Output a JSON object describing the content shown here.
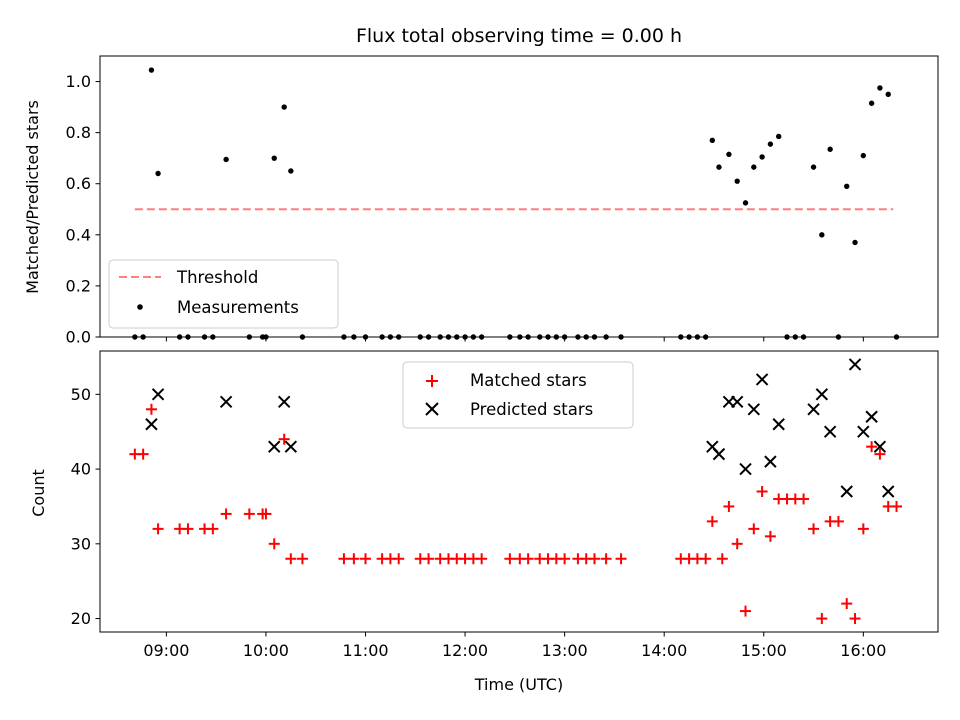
{
  "chart_data": [
    {
      "type": "scatter",
      "title": "Flux total observing time = 0.00 h",
      "xlabel": "",
      "ylabel": "Matched/Predicted stars",
      "ylim": [
        0,
        1.1
      ],
      "yticks": [
        "0.0",
        "0.2",
        "0.4",
        "0.6",
        "0.8",
        "1.0"
      ],
      "ytick_values": [
        0,
        0.2,
        0.4,
        0.6,
        0.8,
        1.0
      ],
      "xlim": [
        "08:20",
        "16:45"
      ],
      "legend": {
        "placement": "lower-left",
        "entries": [
          "Threshold",
          "Measurements"
        ]
      },
      "threshold": {
        "name": "Threshold",
        "y": 0.5,
        "x_start": "08:41",
        "x_end": "16:18",
        "color": "#ff7f7f",
        "style": "dashed"
      },
      "series": [
        {
          "name": "Measurements",
          "color": "#000000",
          "marker": "dot",
          "points": [
            [
              "08:41",
              0.0
            ],
            [
              "08:46",
              0.0
            ],
            [
              "08:51",
              1.045
            ],
            [
              "08:55",
              0.64
            ],
            [
              "09:08",
              0.0
            ],
            [
              "09:13",
              0.0
            ],
            [
              "09:23",
              0.0
            ],
            [
              "09:28",
              0.0
            ],
            [
              "09:36",
              0.695
            ],
            [
              "09:50",
              0.0
            ],
            [
              "09:58",
              0.0
            ],
            [
              "10:00",
              0.0
            ],
            [
              "10:05",
              0.7
            ],
            [
              "10:11",
              0.9
            ],
            [
              "10:15",
              0.65
            ],
            [
              "10:22",
              0.0
            ],
            [
              "10:47",
              0.0
            ],
            [
              "10:53",
              0.0
            ],
            [
              "11:00",
              0.0
            ],
            [
              "11:10",
              0.0
            ],
            [
              "11:15",
              0.0
            ],
            [
              "11:20",
              0.0
            ],
            [
              "11:33",
              0.0
            ],
            [
              "11:38",
              0.0
            ],
            [
              "11:45",
              0.0
            ],
            [
              "11:50",
              0.0
            ],
            [
              "11:55",
              0.0
            ],
            [
              "12:00",
              0.0
            ],
            [
              "12:05",
              0.0
            ],
            [
              "12:10",
              0.0
            ],
            [
              "12:27",
              0.0
            ],
            [
              "12:33",
              0.0
            ],
            [
              "12:38",
              0.0
            ],
            [
              "12:45",
              0.0
            ],
            [
              "12:50",
              0.0
            ],
            [
              "12:55",
              0.0
            ],
            [
              "13:00",
              0.0
            ],
            [
              "13:08",
              0.0
            ],
            [
              "13:13",
              0.0
            ],
            [
              "13:18",
              0.0
            ],
            [
              "13:25",
              0.0
            ],
            [
              "13:34",
              0.0
            ],
            [
              "14:10",
              0.0
            ],
            [
              "14:15",
              0.0
            ],
            [
              "14:20",
              0.0
            ],
            [
              "14:25",
              0.0
            ],
            [
              "14:29",
              0.77
            ],
            [
              "14:33",
              0.665
            ],
            [
              "14:39",
              0.715
            ],
            [
              "14:44",
              0.61
            ],
            [
              "14:49",
              0.525
            ],
            [
              "14:54",
              0.665
            ],
            [
              "14:59",
              0.705
            ],
            [
              "15:04",
              0.755
            ],
            [
              "15:09",
              0.785
            ],
            [
              "15:14",
              0.0
            ],
            [
              "15:19",
              0.0
            ],
            [
              "15:24",
              0.0
            ],
            [
              "15:30",
              0.665
            ],
            [
              "15:35",
              0.4
            ],
            [
              "15:40",
              0.735
            ],
            [
              "15:45",
              0.0
            ],
            [
              "15:50",
              0.59
            ],
            [
              "15:55",
              0.37
            ],
            [
              "16:00",
              0.71
            ],
            [
              "16:05",
              0.915
            ],
            [
              "16:10",
              0.975
            ],
            [
              "16:15",
              0.95
            ],
            [
              "16:20",
              0.0
            ]
          ]
        }
      ]
    },
    {
      "type": "scatter",
      "title": "",
      "xlabel": "Time (UTC)",
      "ylabel": "Count",
      "ylim": [
        18.2,
        55.8
      ],
      "yticks": [
        "20",
        "30",
        "40",
        "50"
      ],
      "ytick_values": [
        20,
        30,
        40,
        50
      ],
      "xlim": [
        "08:20",
        "16:45"
      ],
      "xticks": [
        "09:00",
        "10:00",
        "11:00",
        "12:00",
        "13:00",
        "14:00",
        "15:00",
        "16:00"
      ],
      "legend": {
        "placement": "upper-center",
        "entries": [
          "Matched stars",
          "Predicted stars"
        ]
      },
      "series": [
        {
          "name": "Matched stars",
          "color": "#ff0000",
          "marker": "plus",
          "points": [
            [
              "08:41",
              42
            ],
            [
              "08:46",
              42
            ],
            [
              "08:51",
              48
            ],
            [
              "08:55",
              32
            ],
            [
              "09:08",
              32
            ],
            [
              "09:13",
              32
            ],
            [
              "09:23",
              32
            ],
            [
              "09:28",
              32
            ],
            [
              "09:36",
              34
            ],
            [
              "09:50",
              34
            ],
            [
              "09:58",
              34
            ],
            [
              "10:00",
              34
            ],
            [
              "10:05",
              30
            ],
            [
              "10:11",
              44
            ],
            [
              "10:15",
              28
            ],
            [
              "10:22",
              28
            ],
            [
              "10:47",
              28
            ],
            [
              "10:53",
              28
            ],
            [
              "11:00",
              28
            ],
            [
              "11:10",
              28
            ],
            [
              "11:15",
              28
            ],
            [
              "11:20",
              28
            ],
            [
              "11:33",
              28
            ],
            [
              "11:38",
              28
            ],
            [
              "11:45",
              28
            ],
            [
              "11:50",
              28
            ],
            [
              "11:55",
              28
            ],
            [
              "12:00",
              28
            ],
            [
              "12:05",
              28
            ],
            [
              "12:10",
              28
            ],
            [
              "12:27",
              28
            ],
            [
              "12:33",
              28
            ],
            [
              "12:38",
              28
            ],
            [
              "12:45",
              28
            ],
            [
              "12:50",
              28
            ],
            [
              "12:55",
              28
            ],
            [
              "13:00",
              28
            ],
            [
              "13:08",
              28
            ],
            [
              "13:13",
              28
            ],
            [
              "13:18",
              28
            ],
            [
              "13:25",
              28
            ],
            [
              "13:34",
              28
            ],
            [
              "14:10",
              28
            ],
            [
              "14:15",
              28
            ],
            [
              "14:20",
              28
            ],
            [
              "14:25",
              28
            ],
            [
              "14:29",
              33
            ],
            [
              "14:35",
              28
            ],
            [
              "14:39",
              35
            ],
            [
              "14:44",
              30
            ],
            [
              "14:49",
              21
            ],
            [
              "14:54",
              32
            ],
            [
              "14:59",
              37
            ],
            [
              "15:04",
              31
            ],
            [
              "15:09",
              36
            ],
            [
              "15:14",
              36
            ],
            [
              "15:19",
              36
            ],
            [
              "15:24",
              36
            ],
            [
              "15:30",
              32
            ],
            [
              "15:35",
              20
            ],
            [
              "15:40",
              33
            ],
            [
              "15:45",
              33
            ],
            [
              "15:50",
              22
            ],
            [
              "15:55",
              20
            ],
            [
              "16:00",
              32
            ],
            [
              "16:05",
              43
            ],
            [
              "16:10",
              42
            ],
            [
              "16:15",
              35
            ],
            [
              "16:20",
              35
            ]
          ]
        },
        {
          "name": "Predicted stars",
          "color": "#000000",
          "marker": "x",
          "points": [
            [
              "08:51",
              46
            ],
            [
              "08:55",
              50
            ],
            [
              "09:36",
              49
            ],
            [
              "10:05",
              43
            ],
            [
              "10:11",
              49
            ],
            [
              "10:15",
              43
            ],
            [
              "14:29",
              43
            ],
            [
              "14:33",
              42
            ],
            [
              "14:39",
              49
            ],
            [
              "14:44",
              49
            ],
            [
              "14:49",
              40
            ],
            [
              "14:54",
              48
            ],
            [
              "14:59",
              52
            ],
            [
              "15:04",
              41
            ],
            [
              "15:09",
              46
            ],
            [
              "15:30",
              48
            ],
            [
              "15:35",
              50
            ],
            [
              "15:40",
              45
            ],
            [
              "15:50",
              37
            ],
            [
              "15:55",
              54
            ],
            [
              "16:00",
              45
            ],
            [
              "16:05",
              47
            ],
            [
              "16:10",
              43
            ],
            [
              "16:15",
              37
            ]
          ]
        }
      ]
    }
  ]
}
